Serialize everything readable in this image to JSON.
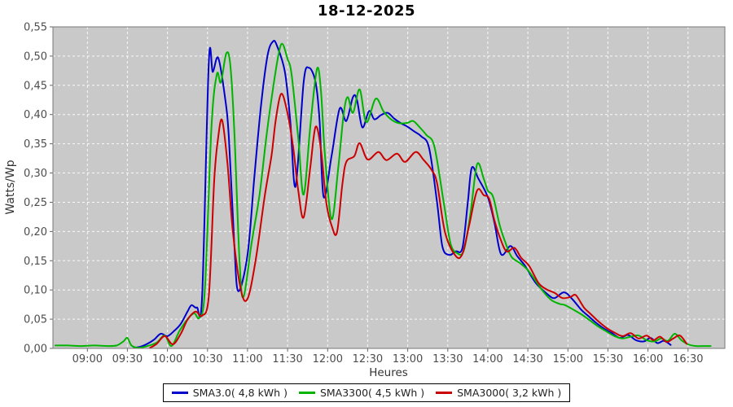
{
  "chart_data": {
    "type": "line",
    "title": "18-12-2025",
    "xlabel": "Heures",
    "ylabel": "Watts/Wp",
    "x_ticks": [
      "09:00",
      "09:30",
      "10:00",
      "10:30",
      "11:00",
      "11:30",
      "12:00",
      "12:30",
      "13:00",
      "13:30",
      "14:00",
      "14:30",
      "15:00",
      "15:30",
      "16:00",
      "16:30"
    ],
    "y_ticks": [
      "0,00",
      "0,05",
      "0,10",
      "0,15",
      "0,20",
      "0,25",
      "0,30",
      "0,35",
      "0,40",
      "0,45",
      "0,50",
      "0,55"
    ],
    "x_range_hours": [
      8.57,
      16.96
    ],
    "y_range": [
      0,
      0.55
    ],
    "grid": {
      "show": true,
      "style": "dashed",
      "color": "#ffffff"
    },
    "legend": {
      "position": "bottom",
      "border": true
    },
    "series": [
      {
        "name": "SMA3.0( 4,8 kWh )",
        "color": "#0000cc",
        "points": [
          [
            "09:35",
            0.001
          ],
          [
            "09:40",
            0.003
          ],
          [
            "09:45",
            0.008
          ],
          [
            "09:50",
            0.015
          ],
          [
            "09:55",
            0.025
          ],
          [
            "10:00",
            0.021
          ],
          [
            "10:05",
            0.03
          ],
          [
            "10:10",
            0.042
          ],
          [
            "10:15",
            0.063
          ],
          [
            "10:18",
            0.074
          ],
          [
            "10:22",
            0.07
          ],
          [
            "10:26",
            0.09
          ],
          [
            "10:31",
            0.49
          ],
          [
            "10:34",
            0.473
          ],
          [
            "10:38",
            0.497
          ],
          [
            "10:43",
            0.431
          ],
          [
            "10:46",
            0.361
          ],
          [
            "10:50",
            0.18
          ],
          [
            "10:53",
            0.098
          ],
          [
            "11:00",
            0.16
          ],
          [
            "11:05",
            0.29
          ],
          [
            "11:10",
            0.413
          ],
          [
            "11:15",
            0.501
          ],
          [
            "11:19",
            0.525
          ],
          [
            "11:22",
            0.518
          ],
          [
            "11:28",
            0.473
          ],
          [
            "11:32",
            0.389
          ],
          [
            "11:36",
            0.277
          ],
          [
            "11:42",
            0.455
          ],
          [
            "11:46",
            0.48
          ],
          [
            "11:51",
            0.455
          ],
          [
            "11:54",
            0.389
          ],
          [
            "11:57",
            0.259
          ],
          [
            "12:03",
            0.33
          ],
          [
            "12:09",
            0.41
          ],
          [
            "12:14",
            0.389
          ],
          [
            "12:19",
            0.43
          ],
          [
            "12:22",
            0.425
          ],
          [
            "12:26",
            0.378
          ],
          [
            "12:31",
            0.406
          ],
          [
            "12:35",
            0.392
          ],
          [
            "12:40",
            0.399
          ],
          [
            "12:45",
            0.403
          ],
          [
            "12:50",
            0.393
          ],
          [
            "12:55",
            0.385
          ],
          [
            "13:00",
            0.379
          ],
          [
            "13:05",
            0.371
          ],
          [
            "13:10",
            0.363
          ],
          [
            "13:16",
            0.343
          ],
          [
            "13:22",
            0.249
          ],
          [
            "13:26",
            0.174
          ],
          [
            "13:31",
            0.16
          ],
          [
            "13:36",
            0.166
          ],
          [
            "13:41",
            0.172
          ],
          [
            "13:45",
            0.25
          ],
          [
            "13:48",
            0.309
          ],
          [
            "13:53",
            0.29
          ],
          [
            "14:00",
            0.259
          ],
          [
            "14:05",
            0.215
          ],
          [
            "14:10",
            0.161
          ],
          [
            "14:17",
            0.175
          ],
          [
            "14:22",
            0.158
          ],
          [
            "14:28",
            0.141
          ],
          [
            "14:33",
            0.122
          ],
          [
            "14:37",
            0.109
          ],
          [
            "14:45",
            0.092
          ],
          [
            "14:50",
            0.086
          ],
          [
            "14:57",
            0.096
          ],
          [
            "15:03",
            0.085
          ],
          [
            "15:10",
            0.066
          ],
          [
            "15:15",
            0.056
          ],
          [
            "15:21",
            0.044
          ],
          [
            "15:27",
            0.034
          ],
          [
            "15:33",
            0.026
          ],
          [
            "15:39",
            0.018
          ],
          [
            "15:45",
            0.023
          ],
          [
            "15:51",
            0.014
          ],
          [
            "15:57",
            0.012
          ],
          [
            "16:02",
            0.018
          ],
          [
            "16:07",
            0.009
          ],
          [
            "16:12",
            0.013
          ],
          [
            "16:17",
            0.006
          ]
        ]
      },
      {
        "name": "SMA3300( 4,5 kWh )",
        "color": "#00b400",
        "points": [
          [
            "08:36",
            0.005
          ],
          [
            "08:45",
            0.005
          ],
          [
            "08:55",
            0.004
          ],
          [
            "09:05",
            0.005
          ],
          [
            "09:15",
            0.004
          ],
          [
            "09:22",
            0.005
          ],
          [
            "09:27",
            0.012
          ],
          [
            "09:30",
            0.018
          ],
          [
            "09:33",
            0.005
          ],
          [
            "09:38",
            0.001
          ],
          [
            "09:45",
            0.004
          ],
          [
            "09:52",
            0.01
          ],
          [
            "09:58",
            0.022
          ],
          [
            "10:03",
            0.004
          ],
          [
            "10:09",
            0.03
          ],
          [
            "10:15",
            0.05
          ],
          [
            "10:20",
            0.06
          ],
          [
            "10:24",
            0.053
          ],
          [
            "10:28",
            0.1
          ],
          [
            "10:33",
            0.38
          ],
          [
            "10:37",
            0.469
          ],
          [
            "10:40",
            0.455
          ],
          [
            "10:44",
            0.504
          ],
          [
            "10:47",
            0.487
          ],
          [
            "10:50",
            0.375
          ],
          [
            "10:54",
            0.15
          ],
          [
            "10:57",
            0.088
          ],
          [
            "11:03",
            0.18
          ],
          [
            "11:09",
            0.263
          ],
          [
            "11:14",
            0.36
          ],
          [
            "11:18",
            0.427
          ],
          [
            "11:23",
            0.5
          ],
          [
            "11:26",
            0.521
          ],
          [
            "11:30",
            0.495
          ],
          [
            "11:33",
            0.469
          ],
          [
            "11:38",
            0.36
          ],
          [
            "11:42",
            0.263
          ],
          [
            "11:47",
            0.38
          ],
          [
            "11:52",
            0.478
          ],
          [
            "11:55",
            0.44
          ],
          [
            "11:58",
            0.33
          ],
          [
            "12:03",
            0.221
          ],
          [
            "12:08",
            0.31
          ],
          [
            "12:12",
            0.4
          ],
          [
            "12:15",
            0.43
          ],
          [
            "12:19",
            0.403
          ],
          [
            "12:24",
            0.443
          ],
          [
            "12:29",
            0.387
          ],
          [
            "12:36",
            0.427
          ],
          [
            "12:42",
            0.405
          ],
          [
            "12:48",
            0.391
          ],
          [
            "12:54",
            0.385
          ],
          [
            "13:00",
            0.386
          ],
          [
            "13:04",
            0.389
          ],
          [
            "13:09",
            0.378
          ],
          [
            "13:14",
            0.365
          ],
          [
            "13:20",
            0.345
          ],
          [
            "13:27",
            0.249
          ],
          [
            "13:32",
            0.18
          ],
          [
            "13:37",
            0.163
          ],
          [
            "13:42",
            0.167
          ],
          [
            "13:47",
            0.23
          ],
          [
            "13:52",
            0.315
          ],
          [
            "13:57",
            0.29
          ],
          [
            "14:00",
            0.27
          ],
          [
            "14:04",
            0.259
          ],
          [
            "14:09",
            0.21
          ],
          [
            "14:14",
            0.176
          ],
          [
            "14:18",
            0.156
          ],
          [
            "14:24",
            0.146
          ],
          [
            "14:30",
            0.134
          ],
          [
            "14:36",
            0.115
          ],
          [
            "14:42",
            0.096
          ],
          [
            "14:48",
            0.082
          ],
          [
            "14:54",
            0.076
          ],
          [
            "14:58",
            0.074
          ],
          [
            "15:05",
            0.065
          ],
          [
            "15:11",
            0.057
          ],
          [
            "15:17",
            0.047
          ],
          [
            "15:23",
            0.037
          ],
          [
            "15:29",
            0.029
          ],
          [
            "15:35",
            0.021
          ],
          [
            "15:41",
            0.017
          ],
          [
            "15:47",
            0.02
          ],
          [
            "15:53",
            0.022
          ],
          [
            "15:59",
            0.014
          ],
          [
            "16:05",
            0.012
          ],
          [
            "16:10",
            0.017
          ],
          [
            "16:15",
            0.013
          ],
          [
            "16:20",
            0.025
          ],
          [
            "16:25",
            0.014
          ],
          [
            "16:30",
            0.007
          ],
          [
            "16:36",
            0.004
          ],
          [
            "16:42",
            0.004
          ],
          [
            "16:47",
            0.004
          ]
        ]
      },
      {
        "name": "SMA3000( 3,2 kWh )",
        "color": "#cc0000",
        "points": [
          [
            "09:47",
            0.001
          ],
          [
            "09:52",
            0.008
          ],
          [
            "09:58",
            0.021
          ],
          [
            "10:04",
            0.007
          ],
          [
            "10:10",
            0.025
          ],
          [
            "10:15",
            0.049
          ],
          [
            "10:21",
            0.063
          ],
          [
            "10:26",
            0.056
          ],
          [
            "10:31",
            0.09
          ],
          [
            "10:35",
            0.287
          ],
          [
            "10:38",
            0.361
          ],
          [
            "10:41",
            0.39
          ],
          [
            "10:45",
            0.315
          ],
          [
            "10:49",
            0.2
          ],
          [
            "10:55",
            0.1
          ],
          [
            "11:00",
            0.085
          ],
          [
            "11:06",
            0.15
          ],
          [
            "11:13",
            0.263
          ],
          [
            "11:18",
            0.33
          ],
          [
            "11:21",
            0.389
          ],
          [
            "11:25",
            0.435
          ],
          [
            "11:29",
            0.412
          ],
          [
            "11:34",
            0.347
          ],
          [
            "11:38",
            0.27
          ],
          [
            "11:42",
            0.224
          ],
          [
            "11:47",
            0.31
          ],
          [
            "11:51",
            0.379
          ],
          [
            "11:55",
            0.34
          ],
          [
            "11:59",
            0.25
          ],
          [
            "12:03",
            0.21
          ],
          [
            "12:07",
            0.198
          ],
          [
            "12:11",
            0.28
          ],
          [
            "12:14",
            0.319
          ],
          [
            "12:20",
            0.329
          ],
          [
            "12:24",
            0.351
          ],
          [
            "12:30",
            0.323
          ],
          [
            "12:38",
            0.336
          ],
          [
            "12:44",
            0.322
          ],
          [
            "12:52",
            0.333
          ],
          [
            "12:58",
            0.319
          ],
          [
            "13:06",
            0.336
          ],
          [
            "13:12",
            0.322
          ],
          [
            "13:18",
            0.305
          ],
          [
            "13:22",
            0.282
          ],
          [
            "13:28",
            0.198
          ],
          [
            "13:36",
            0.158
          ],
          [
            "13:41",
            0.162
          ],
          [
            "13:46",
            0.21
          ],
          [
            "13:52",
            0.27
          ],
          [
            "13:57",
            0.262
          ],
          [
            "14:01",
            0.256
          ],
          [
            "14:05",
            0.219
          ],
          [
            "14:09",
            0.19
          ],
          [
            "14:14",
            0.166
          ],
          [
            "14:20",
            0.172
          ],
          [
            "14:25",
            0.155
          ],
          [
            "14:31",
            0.141
          ],
          [
            "14:38",
            0.112
          ],
          [
            "14:44",
            0.101
          ],
          [
            "14:50",
            0.095
          ],
          [
            "14:56",
            0.086
          ],
          [
            "15:02",
            0.088
          ],
          [
            "15:06",
            0.091
          ],
          [
            "15:12",
            0.07
          ],
          [
            "15:17",
            0.059
          ],
          [
            "15:23",
            0.046
          ],
          [
            "15:29",
            0.035
          ],
          [
            "15:35",
            0.027
          ],
          [
            "15:41",
            0.021
          ],
          [
            "15:47",
            0.026
          ],
          [
            "15:53",
            0.017
          ],
          [
            "15:59",
            0.022
          ],
          [
            "16:04",
            0.014
          ],
          [
            "16:09",
            0.02
          ],
          [
            "16:14",
            0.011
          ],
          [
            "16:19",
            0.017
          ],
          [
            "16:24",
            0.022
          ],
          [
            "16:29",
            0.008
          ]
        ]
      }
    ]
  },
  "colors": {
    "background": "#ffffff",
    "plot_background": "#c9c9c9",
    "grid": "#ffffff",
    "axis_text": "#4d4d4d",
    "plot_border": "#777777",
    "title": "#000000",
    "legend_border": "#000000"
  }
}
